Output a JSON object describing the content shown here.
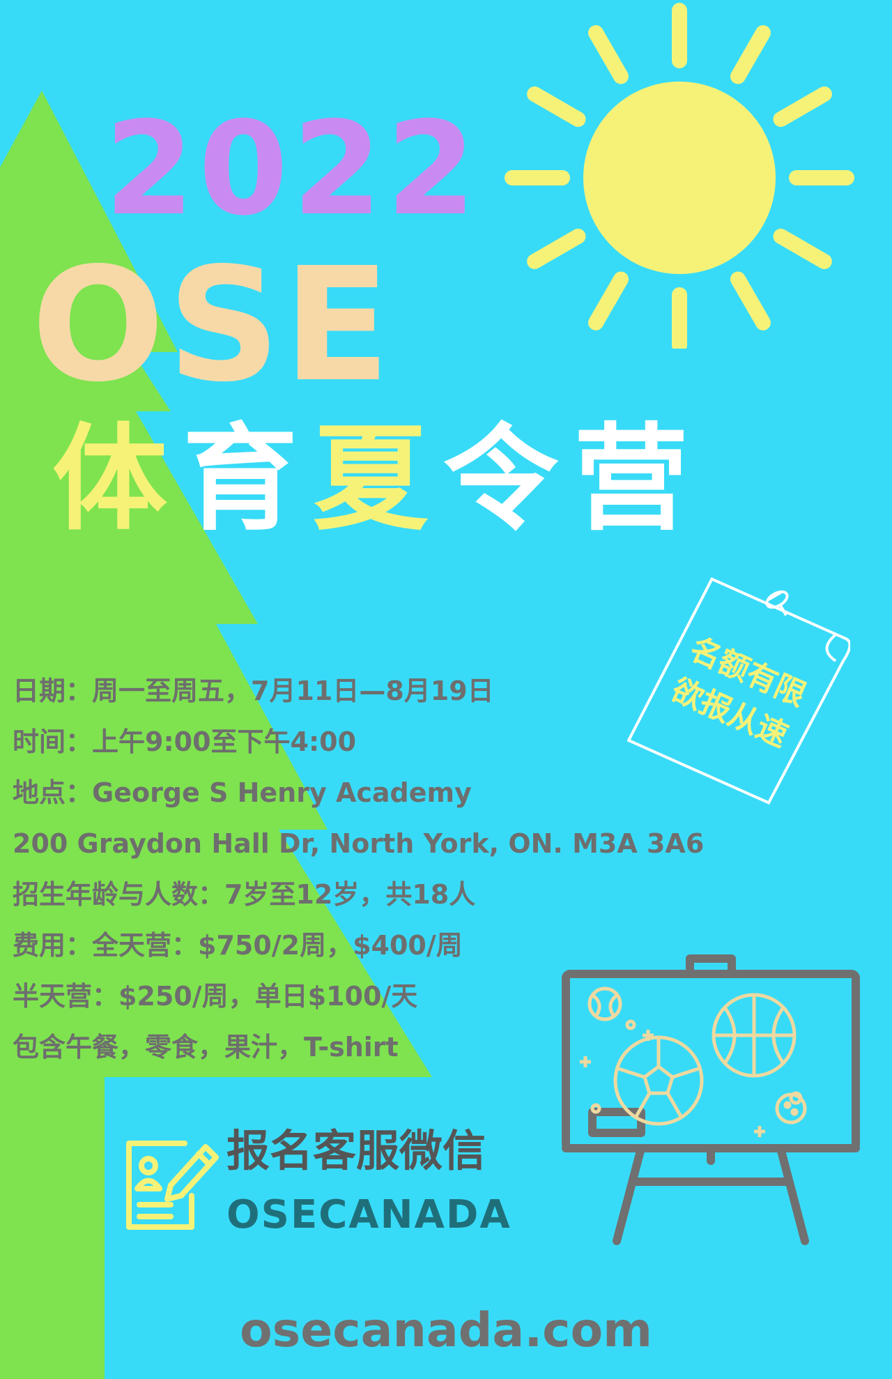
{
  "title": {
    "year": "2022",
    "brand": "OSE",
    "camp_chars": [
      "体",
      "育",
      "夏",
      "令",
      "营"
    ]
  },
  "note": {
    "line1": "名额有限",
    "line2": "欲报从速"
  },
  "info": {
    "date": "日期：周一至周五，7月11日—8月19日",
    "time": "时间：上午9:00至下午4:00",
    "location": "地点：George S Henry Academy",
    "address": "200 Graydon Hall Dr, North York, ON. M3A 3A6",
    "age": "招生年龄与人数：7岁至12岁，共18人",
    "fee_full": "费用：全天营：$750/2周，$400/周",
    "fee_half": "半天营：$250/周，单日$100/天",
    "includes": "包含午餐，零食，果汁，T-shirt"
  },
  "contact": {
    "wechat_label": "报名客服微信",
    "wechat_id": "OSECANADA"
  },
  "website": "osecanada.com",
  "colors": {
    "background": "#38dbf7",
    "tree": "#7ee34f",
    "sun": "#f6f278",
    "year": "#c98bf0",
    "brand": "#f7d9a8",
    "text_gray": "#6e6e6e"
  },
  "icons": [
    "sun-icon",
    "tree-shape",
    "sticky-note-icon",
    "pushpin-icon",
    "whiteboard-easel-icon",
    "sports-balls-icon",
    "signup-form-icon"
  ]
}
